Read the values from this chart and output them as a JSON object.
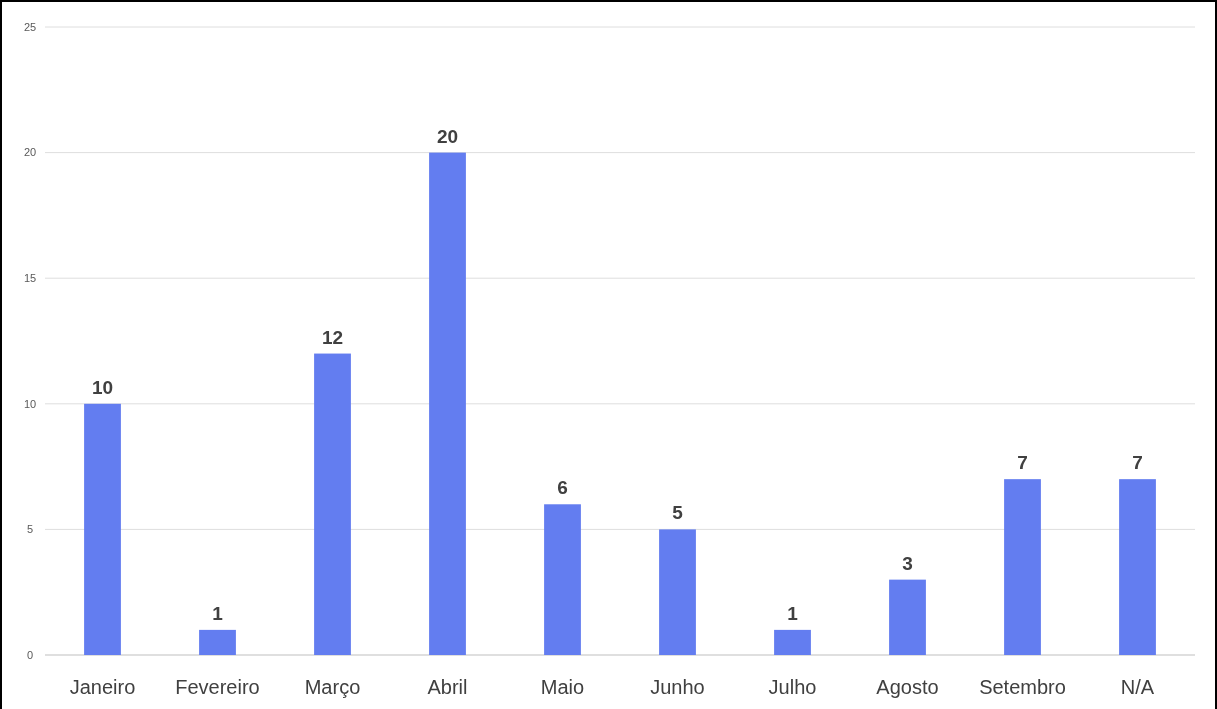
{
  "chart_data": {
    "type": "bar",
    "categories": [
      "Janeiro",
      "Fevereiro",
      "Março",
      "Abril",
      "Maio",
      "Junho",
      "Julho",
      "Agosto",
      "Setembro",
      "N/A"
    ],
    "values": [
      10,
      1,
      12,
      20,
      6,
      5,
      1,
      3,
      7,
      7
    ],
    "color": "#637df0",
    "ylim": [
      0,
      25
    ],
    "yticks": [
      0,
      5,
      10,
      15,
      20,
      25
    ],
    "grid": "y",
    "data_labels": true
  }
}
